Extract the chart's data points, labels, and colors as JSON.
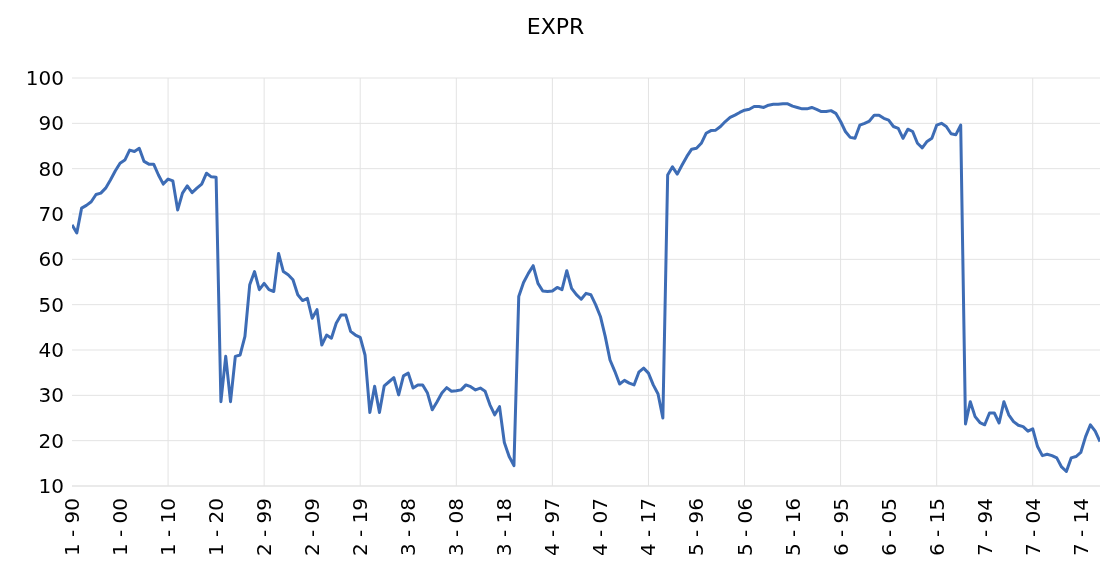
{
  "chart_data": {
    "type": "line",
    "title": "EXPR",
    "categories": [
      "1 - 90",
      null,
      null,
      null,
      null,
      null,
      null,
      null,
      null,
      null,
      "1 - 00",
      null,
      null,
      null,
      null,
      null,
      null,
      null,
      null,
      null,
      "1 - 10",
      null,
      null,
      null,
      null,
      null,
      null,
      null,
      null,
      null,
      "1 - 20",
      null,
      null,
      null,
      null,
      null,
      null,
      null,
      null,
      null,
      "2 - 99",
      null,
      null,
      null,
      null,
      null,
      null,
      null,
      null,
      null,
      "2 - 09",
      null,
      null,
      null,
      null,
      null,
      null,
      null,
      null,
      null,
      "2 - 19",
      null,
      null,
      null,
      null,
      null,
      null,
      null,
      null,
      null,
      "3 - 98",
      null,
      null,
      null,
      null,
      null,
      null,
      null,
      null,
      null,
      "3 - 08",
      null,
      null,
      null,
      null,
      null,
      null,
      null,
      null,
      null,
      "3 - 18",
      null,
      null,
      null,
      null,
      null,
      null,
      null,
      null,
      null,
      "4 - 97",
      null,
      null,
      null,
      null,
      null,
      null,
      null,
      null,
      null,
      "4 - 07",
      null,
      null,
      null,
      null,
      null,
      null,
      null,
      null,
      null,
      "4 - 17",
      null,
      null,
      null,
      null,
      null,
      null,
      null,
      null,
      null,
      "5 - 96",
      null,
      null,
      null,
      null,
      null,
      null,
      null,
      null,
      null,
      "5 - 06",
      null,
      null,
      null,
      null,
      null,
      null,
      null,
      null,
      null,
      "5 - 16",
      null,
      null,
      null,
      null,
      null,
      null,
      null,
      null,
      null,
      "6 - 95",
      null,
      null,
      null,
      null,
      null,
      null,
      null,
      null,
      null,
      "6 - 05",
      null,
      null,
      null,
      null,
      null,
      null,
      null,
      null,
      null,
      "6 - 15",
      null,
      null,
      null,
      null,
      null,
      null,
      null,
      null,
      null,
      "7 - 94",
      null,
      null,
      null,
      null,
      null,
      null,
      null,
      null,
      null,
      "7 - 04",
      null,
      null,
      null,
      null,
      null,
      null,
      null,
      null,
      null,
      "7 - 14",
      null,
      null,
      null,
      null
    ],
    "values": [
      67.6,
      65.8,
      71.3,
      71.9,
      72.7,
      74.3,
      74.6,
      75.7,
      77.5,
      79.5,
      81.2,
      81.9,
      84.1,
      83.8,
      84.5,
      81.6,
      81,
      81,
      78.6,
      76.6,
      77.7,
      77.3,
      70.9,
      74.6,
      76.2,
      74.7,
      75.7,
      76.6,
      79,
      78.2,
      78.1,
      28.6,
      38.6,
      28.6,
      38.6,
      38.9,
      43,
      54.4,
      57.3,
      53.3,
      54.7,
      53.3,
      52.9,
      61.3,
      57.3,
      56.6,
      55.5,
      52.2,
      50.9,
      51.4,
      47,
      48.9,
      41.1,
      43.3,
      42.6,
      45.9,
      47.7,
      47.7,
      44.1,
      43.3,
      42.8,
      38.9,
      26.2,
      32,
      26.2,
      32.1,
      33,
      33.9,
      30.1,
      34.3,
      34.9,
      31.6,
      32.3,
      32.3,
      30.5,
      26.8,
      28.6,
      30.5,
      31.7,
      30.9,
      31,
      31.2,
      32.3,
      31.9,
      31.2,
      31.6,
      30.9,
      27.9,
      25.7,
      27.5,
      19.6,
      16.5,
      14.5,
      51.8,
      54.9,
      56.9,
      58.6,
      54.7,
      53,
      52.9,
      53,
      53.8,
      53.3,
      57.5,
      53.6,
      52.2,
      51.2,
      52.5,
      52.2,
      50,
      47.4,
      43,
      37.8,
      35.3,
      32.5,
      33.3,
      32.7,
      32.3,
      35.1,
      36,
      34.9,
      32.3,
      30.3,
      25,
      78.6,
      80.4,
      78.8,
      80.8,
      82.7,
      84.3,
      84.5,
      85.6,
      87.8,
      88.4,
      88.5,
      89.3,
      90.4,
      91.3,
      91.8,
      92.4,
      92.9,
      93.1,
      93.7,
      93.7,
      93.5,
      94,
      94.2,
      94.2,
      94.3,
      94.3,
      93.8,
      93.5,
      93.2,
      93.2,
      93.5,
      93.1,
      92.6,
      92.6,
      92.8,
      92.2,
      90.4,
      88.2,
      86.9,
      86.7,
      89.6,
      90,
      90.5,
      91.8,
      91.8,
      91.1,
      90.7,
      89.3,
      88.9,
      86.7,
      88.7,
      88.2,
      85.6,
      84.6,
      86,
      86.7,
      89.6,
      90,
      89.3,
      87.7,
      87.5,
      89.6,
      23.7,
      28.6,
      25.3,
      24,
      23.5,
      26.1,
      26.1,
      23.9,
      28.6,
      25.7,
      24.2,
      23.4,
      23.1,
      22.1,
      22.6,
      18.7,
      16.7,
      17,
      16.7,
      16.2,
      14.2,
      13.2,
      16.2,
      16.5,
      17.4,
      20.9,
      23.5,
      22.1,
      19.8
    ],
    "color": "#3d6cb5",
    "ylim": [
      10,
      100
    ],
    "yticks": [
      10,
      20,
      30,
      40,
      50,
      60,
      70,
      80,
      90,
      100
    ],
    "grid": true
  }
}
